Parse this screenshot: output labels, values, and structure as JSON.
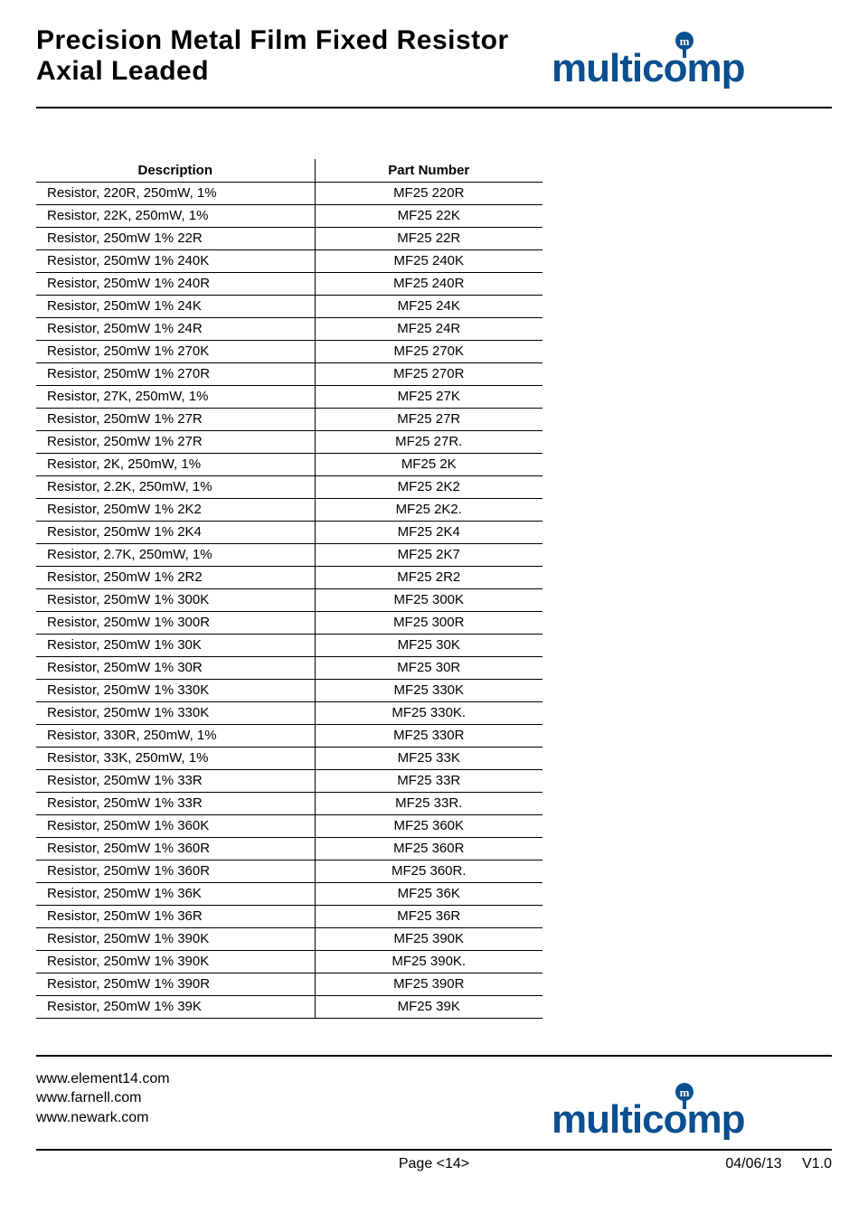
{
  "brand": {
    "name": "multicomp",
    "color": "#0a4f8f"
  },
  "header": {
    "title_line1": "Precision Metal Film Fixed Resistor",
    "title_line2": "Axial Leaded"
  },
  "table": {
    "columns": [
      "Description",
      "Part Number"
    ],
    "rows": [
      [
        "Resistor, 220R, 250mW, 1%",
        "MF25 220R"
      ],
      [
        "Resistor, 22K, 250mW, 1%",
        "MF25 22K"
      ],
      [
        "Resistor, 250mW 1% 22R",
        "MF25 22R"
      ],
      [
        "Resistor, 250mW 1% 240K",
        "MF25 240K"
      ],
      [
        "Resistor, 250mW 1% 240R",
        "MF25 240R"
      ],
      [
        "Resistor, 250mW 1% 24K",
        "MF25 24K"
      ],
      [
        "Resistor, 250mW 1% 24R",
        "MF25 24R"
      ],
      [
        "Resistor, 250mW 1% 270K",
        "MF25 270K"
      ],
      [
        "Resistor, 250mW 1% 270R",
        "MF25 270R"
      ],
      [
        "Resistor, 27K, 250mW, 1%",
        "MF25 27K"
      ],
      [
        "Resistor, 250mW 1% 27R",
        "MF25 27R"
      ],
      [
        "Resistor, 250mW 1% 27R",
        "MF25 27R."
      ],
      [
        "Resistor, 2K, 250mW, 1%",
        "MF25 2K"
      ],
      [
        "Resistor, 2.2K, 250mW, 1%",
        "MF25 2K2"
      ],
      [
        "Resistor, 250mW 1% 2K2",
        "MF25 2K2."
      ],
      [
        "Resistor, 250mW 1% 2K4",
        "MF25 2K4"
      ],
      [
        "Resistor, 2.7K, 250mW, 1%",
        "MF25 2K7"
      ],
      [
        "Resistor, 250mW 1% 2R2",
        "MF25 2R2"
      ],
      [
        "Resistor, 250mW 1% 300K",
        "MF25 300K"
      ],
      [
        "Resistor, 250mW 1% 300R",
        "MF25 300R"
      ],
      [
        "Resistor, 250mW 1% 30K",
        "MF25 30K"
      ],
      [
        "Resistor, 250mW 1% 30R",
        "MF25 30R"
      ],
      [
        "Resistor, 250mW 1% 330K",
        "MF25 330K"
      ],
      [
        "Resistor, 250mW 1% 330K",
        "MF25 330K."
      ],
      [
        "Resistor, 330R, 250mW, 1%",
        "MF25 330R"
      ],
      [
        "Resistor, 33K, 250mW, 1%",
        "MF25 33K"
      ],
      [
        "Resistor, 250mW 1% 33R",
        "MF25 33R"
      ],
      [
        "Resistor, 250mW 1% 33R",
        "MF25 33R."
      ],
      [
        "Resistor, 250mW 1% 360K",
        "MF25 360K"
      ],
      [
        "Resistor, 250mW 1% 360R",
        "MF25 360R"
      ],
      [
        "Resistor, 250mW 1% 360R",
        "MF25 360R."
      ],
      [
        "Resistor, 250mW 1% 36K",
        "MF25 36K"
      ],
      [
        "Resistor, 250mW 1% 36R",
        "MF25 36R"
      ],
      [
        "Resistor, 250mW 1% 390K",
        "MF25 390K"
      ],
      [
        "Resistor, 250mW 1% 390K",
        "MF25 390K."
      ],
      [
        "Resistor, 250mW 1% 390R",
        "MF25 390R"
      ],
      [
        "Resistor, 250mW 1% 39K",
        "MF25 39K"
      ]
    ]
  },
  "footer": {
    "links": [
      "www.element14.com",
      "www.farnell.com",
      "www.newark.com"
    ],
    "page_label": "Page <14>",
    "date": "04/06/13",
    "version": "V1.0"
  }
}
